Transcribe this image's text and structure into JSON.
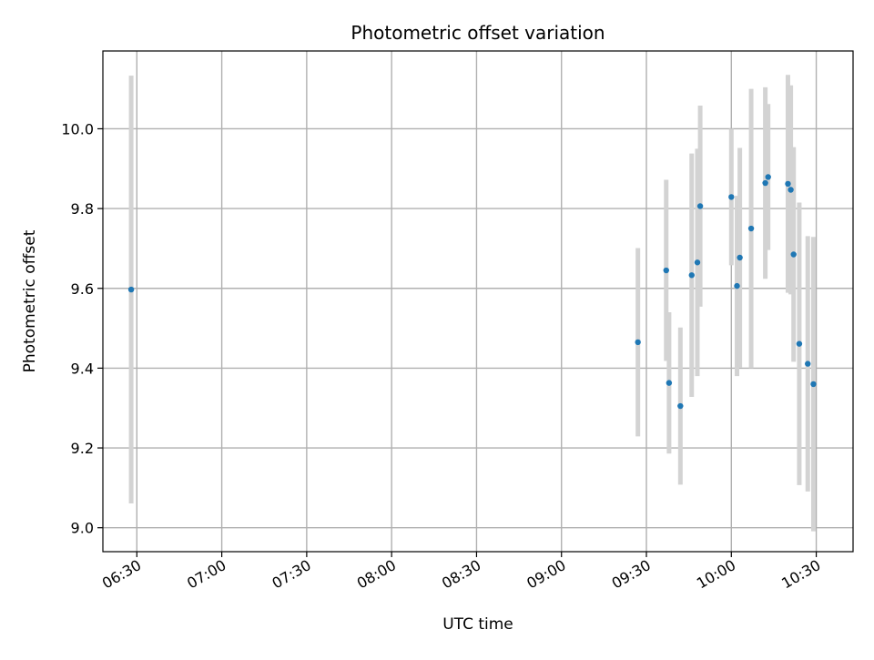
{
  "chart_data": {
    "type": "scatter",
    "title": "Photometric offset variation",
    "xlabel": "UTC time",
    "ylabel": "Photometric offset",
    "x_ticks": [
      "06:30",
      "07:00",
      "07:30",
      "08:00",
      "08:30",
      "09:00",
      "09:30",
      "10:00",
      "10:30"
    ],
    "y_ticks": [
      "9.0",
      "9.2",
      "9.4",
      "9.6",
      "9.8",
      "10.0"
    ],
    "xlim": [
      "06:18",
      "10:43"
    ],
    "ylim": [
      8.94,
      10.195
    ],
    "grid": true,
    "colors": {
      "marker": "#1f77b4",
      "errorbar": "#d3d3d3",
      "grid": "#b0b0b0"
    },
    "series": [
      {
        "points": [
          {
            "x": "06:28",
            "y": 9.597,
            "err": 0.536
          },
          {
            "x": "09:27",
            "y": 9.465,
            "err": 0.236
          },
          {
            "x": "09:37",
            "y": 9.645,
            "err": 0.227
          },
          {
            "x": "09:38",
            "y": 9.363,
            "err": 0.177
          },
          {
            "x": "09:42",
            "y": 9.305,
            "err": 0.197
          },
          {
            "x": "09:46",
            "y": 9.633,
            "err": 0.305
          },
          {
            "x": "09:48",
            "y": 9.665,
            "err": 0.285
          },
          {
            "x": "09:49",
            "y": 9.806,
            "err": 0.252
          },
          {
            "x": "10:00",
            "y": 9.829,
            "err": 0.171
          },
          {
            "x": "10:02",
            "y": 9.606,
            "err": 0.226
          },
          {
            "x": "10:03",
            "y": 9.677,
            "err": 0.275
          },
          {
            "x": "10:07",
            "y": 9.75,
            "err": 0.35
          },
          {
            "x": "10:12",
            "y": 9.864,
            "err": 0.24
          },
          {
            "x": "10:13",
            "y": 9.879,
            "err": 0.183
          },
          {
            "x": "10:20",
            "y": 9.862,
            "err": 0.273
          },
          {
            "x": "10:21",
            "y": 9.847,
            "err": 0.262
          },
          {
            "x": "10:22",
            "y": 9.685,
            "err": 0.269
          },
          {
            "x": "10:24",
            "y": 9.461,
            "err": 0.354
          },
          {
            "x": "10:27",
            "y": 9.411,
            "err": 0.32
          },
          {
            "x": "10:29",
            "y": 9.36,
            "err": 0.369
          }
        ]
      }
    ]
  }
}
